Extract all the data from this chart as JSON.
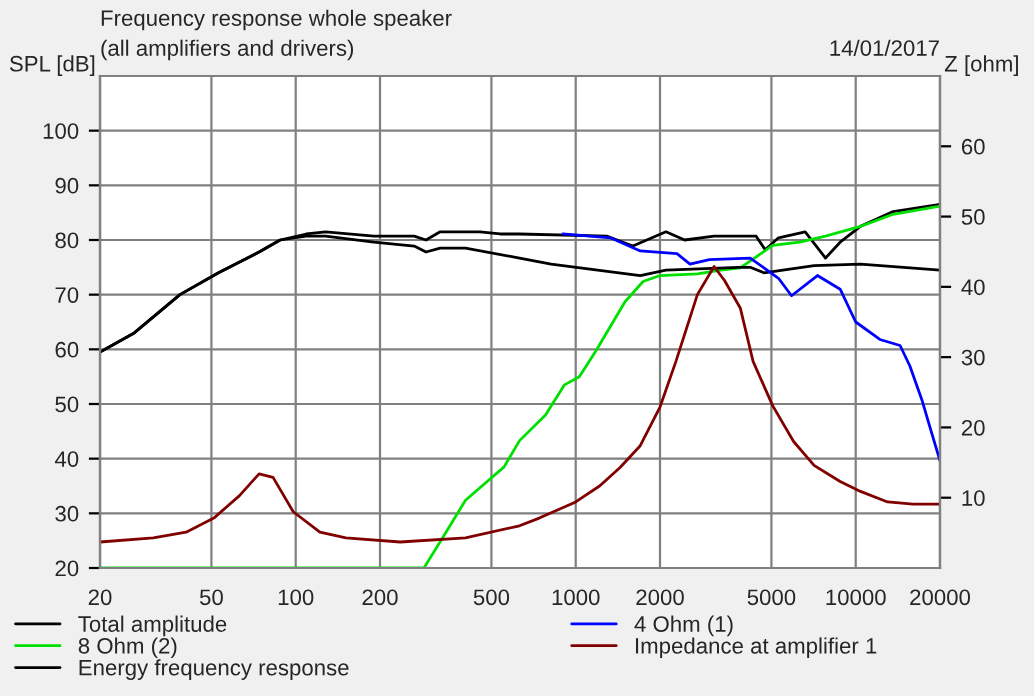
{
  "chart_data": {
    "type": "line",
    "title": "Frequency response whole speaker",
    "subtitle": "(all amplifiers and drivers)",
    "ylabel": "SPL [dB]",
    "y2label": "Z [ohm]",
    "annotations": [
      "14/01/2017"
    ],
    "log": "x",
    "grid": true,
    "legend": "bottom",
    "line_style": "solid",
    "marker": "none",
    "xlim": [
      20,
      20000
    ],
    "xticks": [
      20,
      50,
      100,
      200,
      500,
      1000,
      2000,
      5000,
      10000,
      20000
    ],
    "ylim": [
      20,
      110
    ],
    "yticks": [
      20,
      30,
      40,
      50,
      60,
      70,
      80,
      90,
      100
    ],
    "y2lim": [
      0,
      70
    ],
    "y2ticks": [
      10,
      20,
      30,
      40,
      50,
      60
    ],
    "series": [
      {
        "name": "Total amplitude",
        "color": "#000000",
        "x": [
          20,
          26.5,
          38.6,
          53,
          74,
          88,
          109,
          128,
          190,
          265,
          292,
          328,
          455,
          537,
          630,
          1290,
          1600,
          2100,
          2450,
          3120,
          4410,
          4750,
          5300,
          6600,
          7800,
          8800,
          10400,
          13600,
          20000
        ],
        "values": [
          59.5,
          63,
          70,
          74,
          77.8,
          80,
          81.1,
          81.5,
          80.7,
          80.7,
          80,
          81.5,
          81.5,
          81.1,
          81.1,
          80.7,
          78.9,
          81.5,
          80,
          80.7,
          80.7,
          78.2,
          80.4,
          81.5,
          76.7,
          79.6,
          82.5,
          85.2,
          86.5
        ]
      },
      {
        "name": "8 Ohm (2)",
        "color": "#00e000",
        "x": [
          20,
          287,
          339,
          404,
          555,
          630,
          780,
          912,
          1030,
          1180,
          1500,
          1740,
          2000,
          2720,
          3300,
          3870,
          5050,
          6300,
          7800,
          10400,
          13600,
          20000
        ],
        "values": [
          20,
          20,
          26,
          32.4,
          38.5,
          43.3,
          48,
          53.5,
          55,
          59.7,
          68.7,
          72.4,
          73.5,
          73.8,
          74.5,
          74.9,
          79,
          79.6,
          80.7,
          82.5,
          84.7,
          86.2
        ]
      },
      {
        "name": "Energy frequency response",
        "color": "#000000",
        "x": [
          20,
          26.5,
          38.6,
          53,
          74,
          88,
          109,
          128,
          190,
          265,
          292,
          328,
          404,
          630,
          817,
          1700,
          2100,
          3800,
          4200,
          4700,
          7100,
          10400,
          20000
        ],
        "values": [
          59.5,
          63,
          70,
          74,
          77.8,
          80,
          80.7,
          80.7,
          79.6,
          78.9,
          77.8,
          78.5,
          78.5,
          76.7,
          75.6,
          73.5,
          74.5,
          75,
          75,
          74,
          75.3,
          75.6,
          74.5
        ]
      },
      {
        "name": "4 Ohm (1)",
        "color": "#0000ff",
        "x": [
          900,
          1330,
          1700,
          2300,
          2560,
          3000,
          4200,
          5300,
          5900,
          7300,
          8800,
          10000,
          12200,
          14400,
          15600,
          17300,
          18400,
          20000
        ],
        "values": [
          81.1,
          80.4,
          78,
          77.5,
          75.6,
          76.4,
          76.7,
          73,
          69.8,
          73.5,
          71,
          65,
          61.8,
          60.7,
          57,
          50.5,
          45.8,
          39.6
        ]
      },
      {
        "name": "Impedance at amplifier 1",
        "color": "#800000",
        "axis": "y2",
        "x": [
          20,
          31,
          40.6,
          51,
          63,
          74,
          83,
          98,
          122,
          151,
          236,
          404,
          630,
          741,
          1000,
          1220,
          1440,
          1700,
          2000,
          2280,
          2720,
          3120,
          3400,
          3870,
          4300,
          5050,
          6000,
          7100,
          8800,
          10400,
          13000,
          16000,
          20000
        ],
        "values": [
          3.7,
          4.3,
          5.1,
          7.1,
          10.3,
          13.4,
          12.9,
          8,
          5.1,
          4.3,
          3.7,
          4.3,
          6,
          7.1,
          9.4,
          11.7,
          14.3,
          17.4,
          22.9,
          29.4,
          38.9,
          42.9,
          40.9,
          37,
          29.4,
          23.1,
          18,
          14.6,
          12.3,
          10.9,
          9.4,
          9.1,
          9.1
        ]
      }
    ]
  }
}
